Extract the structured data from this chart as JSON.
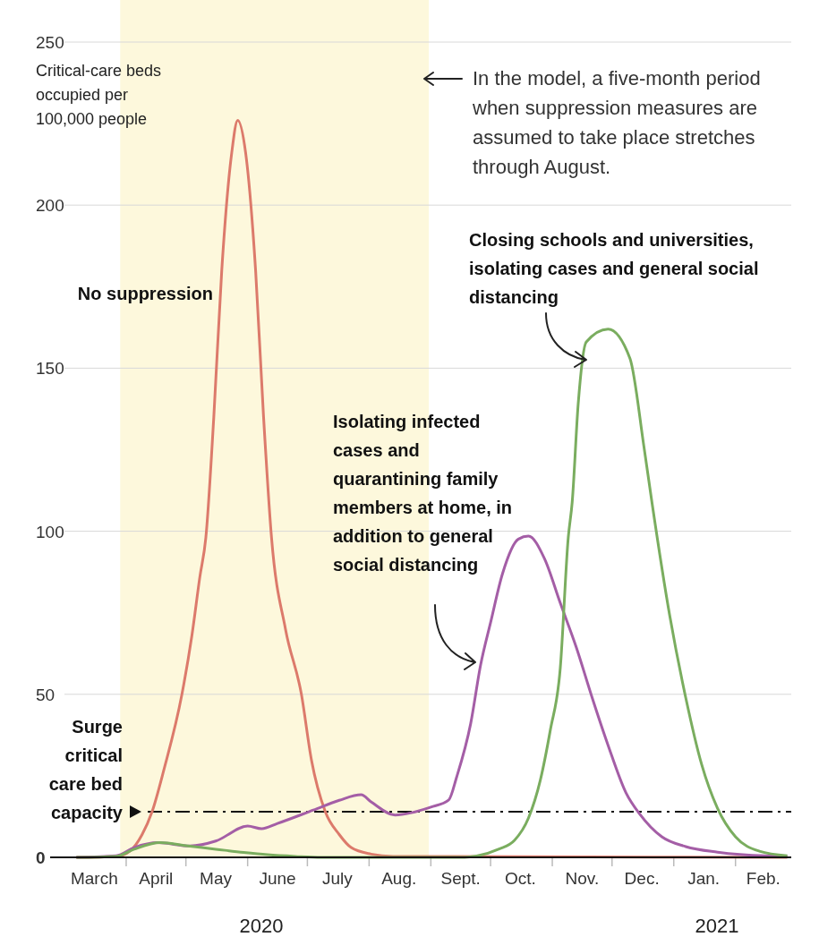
{
  "chart_data": {
    "type": "line",
    "ylabel": "Critical-care beds occupied per 100,000 people",
    "xlim": [
      "2020-03-01",
      "2021-03-01"
    ],
    "ylim": [
      0,
      250
    ],
    "yticks": [
      0,
      50,
      100,
      150,
      200,
      250
    ],
    "xticks": [
      {
        "value": "2020-03-16",
        "label": "March"
      },
      {
        "value": "2020-04-01",
        "label": null
      },
      {
        "value": "2020-04-16",
        "label": "April"
      },
      {
        "value": "2020-05-01",
        "label": null
      },
      {
        "value": "2020-05-16",
        "label": "May"
      },
      {
        "value": "2020-06-01",
        "label": null
      },
      {
        "value": "2020-06-16",
        "label": "June"
      },
      {
        "value": "2020-07-01",
        "label": null
      },
      {
        "value": "2020-07-16",
        "label": "July"
      },
      {
        "value": "2020-08-01",
        "label": null
      },
      {
        "value": "2020-08-16",
        "label": "Aug."
      },
      {
        "value": "2020-09-01",
        "label": null
      },
      {
        "value": "2020-09-16",
        "label": "Sept."
      },
      {
        "value": "2020-10-01",
        "label": null
      },
      {
        "value": "2020-10-16",
        "label": "Oct."
      },
      {
        "value": "2020-11-01",
        "label": null
      },
      {
        "value": "2020-11-16",
        "label": "Nov."
      },
      {
        "value": "2020-12-01",
        "label": null
      },
      {
        "value": "2020-12-16",
        "label": "Dec."
      },
      {
        "value": "2021-01-01",
        "label": null
      },
      {
        "value": "2021-01-16",
        "label": "Jan."
      },
      {
        "value": "2021-02-01",
        "label": null
      },
      {
        "value": "2021-02-15",
        "label": "Feb."
      }
    ],
    "grid": "y",
    "line_style": "solid",
    "series": [
      {
        "name": "No suppression",
        "color": "#dc7a6b",
        "x": [
          "2020-03-07",
          "2020-03-27",
          "2020-04-03",
          "2020-04-09",
          "2020-04-14",
          "2020-04-20",
          "2020-04-29",
          "2020-05-04",
          "2020-05-08",
          "2020-05-11",
          "2020-05-15",
          "2020-05-19",
          "2020-05-24",
          "2020-05-27",
          "2020-05-31",
          "2020-06-05",
          "2020-06-09",
          "2020-06-13",
          "2020-06-20",
          "2020-06-28",
          "2020-07-03",
          "2020-07-10",
          "2020-07-17",
          "2020-07-23",
          "2020-08-02",
          "2020-08-13",
          "2021-02-27"
        ],
        "values": [
          0,
          0.3,
          2,
          7,
          14,
          27,
          50,
          68,
          86,
          98,
          135,
          180,
          216,
          226,
          216,
          180,
          135,
          98,
          70,
          50,
          30,
          14,
          7,
          3,
          1,
          0.3,
          0
        ]
      },
      {
        "name": "Isolating infected cases and quarantining family members at home, in addition to general social distancing",
        "color": "#a45ea6",
        "x": [
          "2020-03-07",
          "2020-03-27",
          "2020-04-05",
          "2020-04-17",
          "2020-05-03",
          "2020-05-16",
          "2020-06-01",
          "2020-06-08",
          "2020-06-16",
          "2020-07-04",
          "2020-07-17",
          "2020-07-28",
          "2020-08-02",
          "2020-08-14",
          "2020-09-01",
          "2020-09-10",
          "2020-09-14",
          "2020-09-21",
          "2020-09-26",
          "2020-10-01",
          "2020-10-07",
          "2020-10-15",
          "2020-10-20",
          "2020-10-28",
          "2020-11-05",
          "2020-11-13",
          "2020-11-21",
          "2020-11-29",
          "2020-12-08",
          "2020-12-15",
          "2020-12-26",
          "2021-01-07",
          "2021-01-23",
          "2021-02-16",
          "2021-02-27"
        ],
        "values": [
          0,
          0.5,
          3,
          4.5,
          3.5,
          5,
          9.6,
          8.8,
          10.4,
          14.5,
          17.5,
          19.2,
          17,
          13,
          15.4,
          17.6,
          24.7,
          41,
          59,
          72,
          87,
          97.6,
          98.5,
          91.7,
          78,
          64.5,
          49,
          34.4,
          19.8,
          13.2,
          6.3,
          3.3,
          1.6,
          0.5,
          0.4
        ]
      },
      {
        "name": "Closing schools and universities, isolating cases and general social distancing",
        "color": "#7aad5f",
        "x": [
          "2020-03-07",
          "2020-03-27",
          "2020-04-05",
          "2020-04-18",
          "2020-05-02",
          "2020-05-16",
          "2020-05-30",
          "2020-06-11",
          "2020-06-25",
          "2020-07-08",
          "2020-09-18",
          "2020-09-24",
          "2020-10-05",
          "2020-10-13",
          "2020-10-20",
          "2020-10-26",
          "2020-10-31",
          "2020-11-05",
          "2020-11-09",
          "2020-11-11",
          "2020-11-14",
          "2020-11-18",
          "2020-11-29",
          "2020-12-10",
          "2020-12-17",
          "2020-12-21",
          "2020-12-30",
          "2021-01-07",
          "2021-01-15",
          "2021-01-23",
          "2021-02-01",
          "2021-02-13",
          "2021-02-27"
        ],
        "values": [
          0,
          0.3,
          2.5,
          4.5,
          3.5,
          2.5,
          1.5,
          0.8,
          0.3,
          0,
          0,
          0.4,
          2.5,
          5.2,
          12,
          23.7,
          39,
          58,
          98,
          109,
          139,
          158,
          162,
          153,
          126,
          109,
          74,
          49,
          28.5,
          15,
          6.3,
          1.9,
          0.5
        ]
      }
    ],
    "ref_lines": [
      {
        "axis": "y",
        "value": 14,
        "label": "Surge critical care bed capacity",
        "color": "#111111",
        "line_style": "dashed"
      }
    ],
    "bands": [
      {
        "axis": "x",
        "from": "2020-03-29",
        "to": "2020-08-31",
        "label": "In the model, a five-month period when suppression measures are assumed to take place stretches through August.",
        "color": "#fdf8dc"
      }
    ],
    "annotations": [
      "2020",
      "2021"
    ]
  }
}
